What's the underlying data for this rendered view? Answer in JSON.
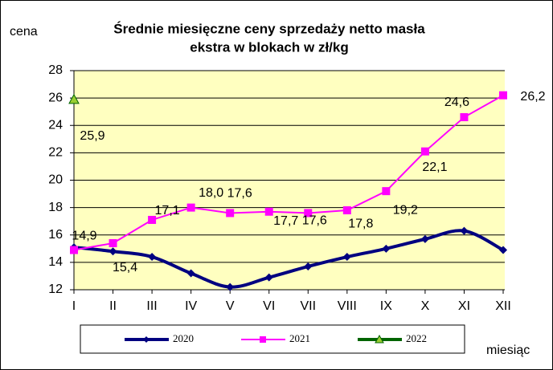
{
  "chart_data": {
    "type": "line",
    "title": [
      "Średnie miesięczne ceny sprzedaży netto masła",
      "ekstra w blokach w zł/kg"
    ],
    "y_label": "cena",
    "x_label": "miesiąc",
    "categories": [
      "I",
      "II",
      "III",
      "IV",
      "V",
      "VI",
      "VII",
      "VIII",
      "IX",
      "X",
      "XI",
      "XII"
    ],
    "ylim": [
      12,
      28
    ],
    "yticks": [
      12,
      14,
      16,
      18,
      20,
      22,
      24,
      26,
      28
    ],
    "grid": true,
    "legend": "bottom",
    "series": [
      {
        "name": "2020",
        "color": "#000080",
        "marker": "diamond",
        "values": [
          15.1,
          14.8,
          14.4,
          13.2,
          12.2,
          12.9,
          13.7,
          14.4,
          15.0,
          15.7,
          16.3,
          14.9
        ]
      },
      {
        "name": "2021",
        "color": "#ff00ff",
        "marker": "square",
        "values": [
          14.9,
          15.4,
          17.1,
          18.0,
          17.6,
          17.7,
          17.6,
          17.8,
          19.2,
          22.1,
          24.6,
          26.2
        ],
        "value_labels": [
          "14,9",
          "15,4",
          "17,1",
          "18,0",
          "17,6",
          "17,7",
          "17,6",
          "17,8",
          "19,2",
          "22,1",
          "24,6",
          "26,2"
        ]
      },
      {
        "name": "2022",
        "color": "#006400",
        "marker": "triangle",
        "values": [
          25.9,
          null,
          null,
          null,
          null,
          null,
          null,
          null,
          null,
          null,
          null,
          null
        ],
        "value_labels": [
          "25,9",
          null,
          null,
          null,
          null,
          null,
          null,
          null,
          null,
          null,
          null,
          null
        ]
      }
    ]
  }
}
